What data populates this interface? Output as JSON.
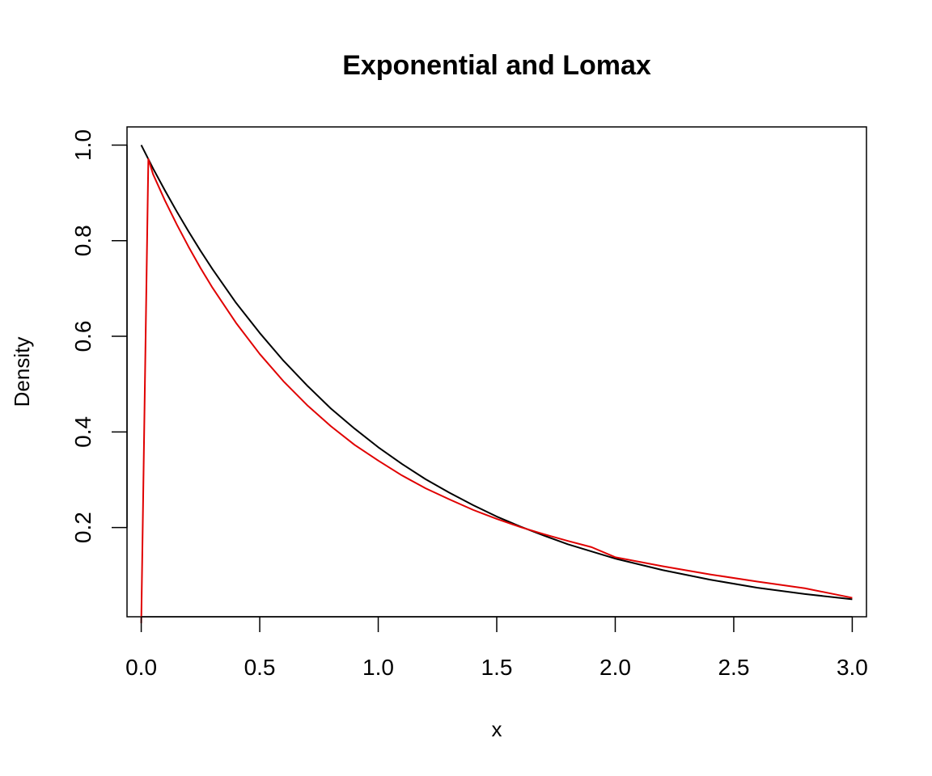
{
  "chart_data": {
    "type": "line",
    "title": "Exponential and Lomax",
    "xlabel": "x",
    "ylabel": "Density",
    "xlim": [
      -0.06,
      3.06
    ],
    "ylim": [
      0.0134,
      1.038
    ],
    "x_ticks": [
      0.0,
      0.5,
      1.0,
      1.5,
      2.0,
      2.5,
      3.0
    ],
    "x_tick_labels": [
      "0.0",
      "0.5",
      "1.0",
      "1.5",
      "2.0",
      "2.5",
      "3.0"
    ],
    "y_ticks": [
      0.2,
      0.4,
      0.6,
      0.8,
      1.0
    ],
    "y_tick_labels": [
      "0.2",
      "0.4",
      "0.6",
      "0.8",
      "1.0"
    ],
    "grid": false,
    "legend": "none",
    "series": [
      {
        "color": "#000000",
        "x": [
          0.0,
          0.05,
          0.1,
          0.15,
          0.2,
          0.25,
          0.3,
          0.4,
          0.5,
          0.6,
          0.7,
          0.8,
          0.9,
          1.0,
          1.1,
          1.2,
          1.3,
          1.4,
          1.5,
          1.6,
          1.7,
          1.8,
          1.9,
          2.0,
          2.2,
          2.4,
          2.6,
          2.8,
          3.0
        ],
        "y": [
          1.0,
          0.951,
          0.905,
          0.861,
          0.819,
          0.779,
          0.741,
          0.67,
          0.607,
          0.549,
          0.497,
          0.449,
          0.407,
          0.368,
          0.333,
          0.301,
          0.273,
          0.247,
          0.223,
          0.202,
          0.183,
          0.165,
          0.15,
          0.135,
          0.111,
          0.091,
          0.074,
          0.061,
          0.05
        ]
      },
      {
        "color": "#e00000",
        "x": [
          0.0,
          0.03,
          0.05,
          0.1,
          0.15,
          0.2,
          0.25,
          0.3,
          0.4,
          0.5,
          0.6,
          0.7,
          0.8,
          0.9,
          1.0,
          1.1,
          1.2,
          1.3,
          1.4,
          1.5,
          1.6,
          1.7,
          1.8,
          1.9,
          2.0,
          2.2,
          2.4,
          2.6,
          2.8,
          3.0
        ],
        "y": [
          0.0,
          0.971,
          0.939,
          0.884,
          0.834,
          0.787,
          0.743,
          0.702,
          0.628,
          0.563,
          0.506,
          0.456,
          0.412,
          0.373,
          0.34,
          0.309,
          0.282,
          0.259,
          0.237,
          0.218,
          0.201,
          0.186,
          0.172,
          0.159,
          0.138,
          0.119,
          0.102,
          0.087,
          0.073,
          0.053
        ]
      }
    ]
  }
}
